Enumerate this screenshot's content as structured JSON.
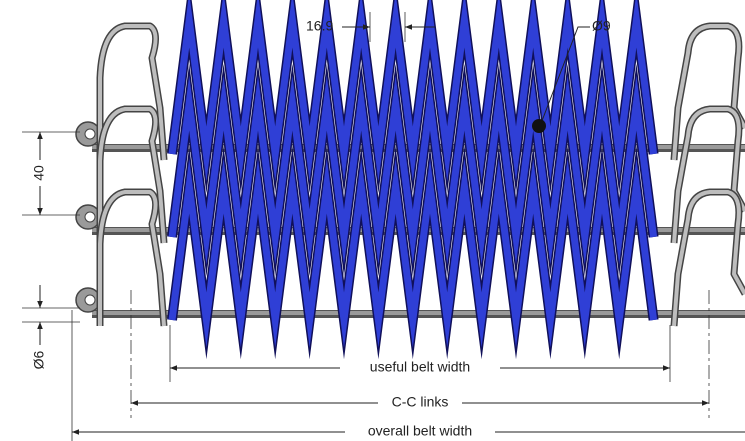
{
  "dimensions": {
    "spiral_pitch": "16.9",
    "wire_diameter": "Ø9",
    "rod_pitch": "40",
    "rod_diameter": "Ø6",
    "useful_width": "useful belt width",
    "cc_links": "C-C links",
    "overall_width": "overall belt width"
  }
}
